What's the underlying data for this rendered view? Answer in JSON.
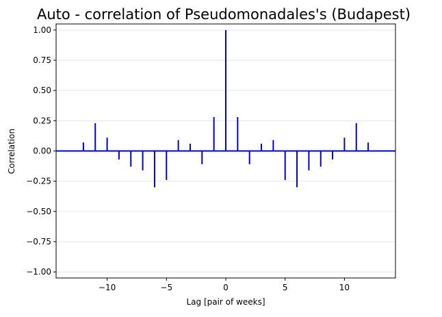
{
  "chart_data": {
    "type": "bar",
    "title": "Auto - correlation of Pseudomonadales's (Budapest)",
    "xlabel": "Lag [pair of weeks]",
    "ylabel": "Correlation",
    "x": [
      -12,
      -11,
      -10,
      -9,
      -8,
      -7,
      -6,
      -5,
      -4,
      -3,
      -2,
      -1,
      0,
      1,
      2,
      3,
      4,
      5,
      6,
      7,
      8,
      9,
      10,
      11,
      12
    ],
    "values": [
      0.07,
      0.23,
      0.11,
      -0.07,
      -0.13,
      -0.16,
      -0.3,
      -0.24,
      0.09,
      0.06,
      -0.11,
      0.28,
      1.0,
      0.28,
      -0.11,
      0.06,
      0.09,
      -0.24,
      -0.3,
      -0.16,
      -0.13,
      -0.07,
      0.11,
      0.23,
      0.07
    ],
    "xlim": [
      -14.3,
      14.3
    ],
    "ylim": [
      -1.05,
      1.05
    ],
    "xticks": [
      -10,
      -5,
      0,
      5,
      10
    ],
    "xtick_labels": [
      "−10",
      "−5",
      "0",
      "5",
      "10"
    ],
    "yticks": [
      1.0,
      0.75,
      0.5,
      0.25,
      0.0,
      -0.25,
      -0.5,
      -0.75,
      -1.0
    ],
    "ytick_labels": [
      "1.00",
      "0.75",
      "0.50",
      "0.25",
      "0.00",
      "−0.25",
      "−0.50",
      "−0.75",
      "−1.00"
    ],
    "grid": "horizontal",
    "colors": {
      "bar": "#0000cc",
      "baseline": "#0000cc",
      "grid": "#e6e6e6"
    }
  }
}
